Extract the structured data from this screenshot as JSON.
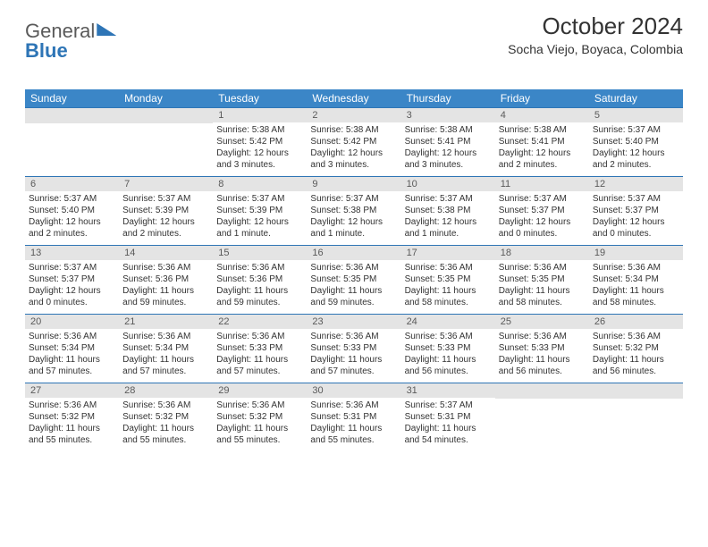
{
  "logo": {
    "general": "General",
    "blue": "Blue"
  },
  "header": {
    "month": "October 2024",
    "location": "Socha Viejo, Boyaca, Colombia"
  },
  "dow": [
    "Sunday",
    "Monday",
    "Tuesday",
    "Wednesday",
    "Thursday",
    "Friday",
    "Saturday"
  ],
  "colors": {
    "header_bg": "#3b86c7",
    "rule": "#2e75b6",
    "daynum_bg": "#e4e4e4"
  },
  "weeks": [
    [
      null,
      null,
      {
        "n": "1",
        "sr": "Sunrise: 5:38 AM",
        "ss": "Sunset: 5:42 PM",
        "dl": "Daylight: 12 hours and 3 minutes."
      },
      {
        "n": "2",
        "sr": "Sunrise: 5:38 AM",
        "ss": "Sunset: 5:42 PM",
        "dl": "Daylight: 12 hours and 3 minutes."
      },
      {
        "n": "3",
        "sr": "Sunrise: 5:38 AM",
        "ss": "Sunset: 5:41 PM",
        "dl": "Daylight: 12 hours and 3 minutes."
      },
      {
        "n": "4",
        "sr": "Sunrise: 5:38 AM",
        "ss": "Sunset: 5:41 PM",
        "dl": "Daylight: 12 hours and 2 minutes."
      },
      {
        "n": "5",
        "sr": "Sunrise: 5:37 AM",
        "ss": "Sunset: 5:40 PM",
        "dl": "Daylight: 12 hours and 2 minutes."
      }
    ],
    [
      {
        "n": "6",
        "sr": "Sunrise: 5:37 AM",
        "ss": "Sunset: 5:40 PM",
        "dl": "Daylight: 12 hours and 2 minutes."
      },
      {
        "n": "7",
        "sr": "Sunrise: 5:37 AM",
        "ss": "Sunset: 5:39 PM",
        "dl": "Daylight: 12 hours and 2 minutes."
      },
      {
        "n": "8",
        "sr": "Sunrise: 5:37 AM",
        "ss": "Sunset: 5:39 PM",
        "dl": "Daylight: 12 hours and 1 minute."
      },
      {
        "n": "9",
        "sr": "Sunrise: 5:37 AM",
        "ss": "Sunset: 5:38 PM",
        "dl": "Daylight: 12 hours and 1 minute."
      },
      {
        "n": "10",
        "sr": "Sunrise: 5:37 AM",
        "ss": "Sunset: 5:38 PM",
        "dl": "Daylight: 12 hours and 1 minute."
      },
      {
        "n": "11",
        "sr": "Sunrise: 5:37 AM",
        "ss": "Sunset: 5:37 PM",
        "dl": "Daylight: 12 hours and 0 minutes."
      },
      {
        "n": "12",
        "sr": "Sunrise: 5:37 AM",
        "ss": "Sunset: 5:37 PM",
        "dl": "Daylight: 12 hours and 0 minutes."
      }
    ],
    [
      {
        "n": "13",
        "sr": "Sunrise: 5:37 AM",
        "ss": "Sunset: 5:37 PM",
        "dl": "Daylight: 12 hours and 0 minutes."
      },
      {
        "n": "14",
        "sr": "Sunrise: 5:36 AM",
        "ss": "Sunset: 5:36 PM",
        "dl": "Daylight: 11 hours and 59 minutes."
      },
      {
        "n": "15",
        "sr": "Sunrise: 5:36 AM",
        "ss": "Sunset: 5:36 PM",
        "dl": "Daylight: 11 hours and 59 minutes."
      },
      {
        "n": "16",
        "sr": "Sunrise: 5:36 AM",
        "ss": "Sunset: 5:35 PM",
        "dl": "Daylight: 11 hours and 59 minutes."
      },
      {
        "n": "17",
        "sr": "Sunrise: 5:36 AM",
        "ss": "Sunset: 5:35 PM",
        "dl": "Daylight: 11 hours and 58 minutes."
      },
      {
        "n": "18",
        "sr": "Sunrise: 5:36 AM",
        "ss": "Sunset: 5:35 PM",
        "dl": "Daylight: 11 hours and 58 minutes."
      },
      {
        "n": "19",
        "sr": "Sunrise: 5:36 AM",
        "ss": "Sunset: 5:34 PM",
        "dl": "Daylight: 11 hours and 58 minutes."
      }
    ],
    [
      {
        "n": "20",
        "sr": "Sunrise: 5:36 AM",
        "ss": "Sunset: 5:34 PM",
        "dl": "Daylight: 11 hours and 57 minutes."
      },
      {
        "n": "21",
        "sr": "Sunrise: 5:36 AM",
        "ss": "Sunset: 5:34 PM",
        "dl": "Daylight: 11 hours and 57 minutes."
      },
      {
        "n": "22",
        "sr": "Sunrise: 5:36 AM",
        "ss": "Sunset: 5:33 PM",
        "dl": "Daylight: 11 hours and 57 minutes."
      },
      {
        "n": "23",
        "sr": "Sunrise: 5:36 AM",
        "ss": "Sunset: 5:33 PM",
        "dl": "Daylight: 11 hours and 57 minutes."
      },
      {
        "n": "24",
        "sr": "Sunrise: 5:36 AM",
        "ss": "Sunset: 5:33 PM",
        "dl": "Daylight: 11 hours and 56 minutes."
      },
      {
        "n": "25",
        "sr": "Sunrise: 5:36 AM",
        "ss": "Sunset: 5:33 PM",
        "dl": "Daylight: 11 hours and 56 minutes."
      },
      {
        "n": "26",
        "sr": "Sunrise: 5:36 AM",
        "ss": "Sunset: 5:32 PM",
        "dl": "Daylight: 11 hours and 56 minutes."
      }
    ],
    [
      {
        "n": "27",
        "sr": "Sunrise: 5:36 AM",
        "ss": "Sunset: 5:32 PM",
        "dl": "Daylight: 11 hours and 55 minutes."
      },
      {
        "n": "28",
        "sr": "Sunrise: 5:36 AM",
        "ss": "Sunset: 5:32 PM",
        "dl": "Daylight: 11 hours and 55 minutes."
      },
      {
        "n": "29",
        "sr": "Sunrise: 5:36 AM",
        "ss": "Sunset: 5:32 PM",
        "dl": "Daylight: 11 hours and 55 minutes."
      },
      {
        "n": "30",
        "sr": "Sunrise: 5:36 AM",
        "ss": "Sunset: 5:31 PM",
        "dl": "Daylight: 11 hours and 55 minutes."
      },
      {
        "n": "31",
        "sr": "Sunrise: 5:37 AM",
        "ss": "Sunset: 5:31 PM",
        "dl": "Daylight: 11 hours and 54 minutes."
      },
      null,
      null
    ]
  ]
}
